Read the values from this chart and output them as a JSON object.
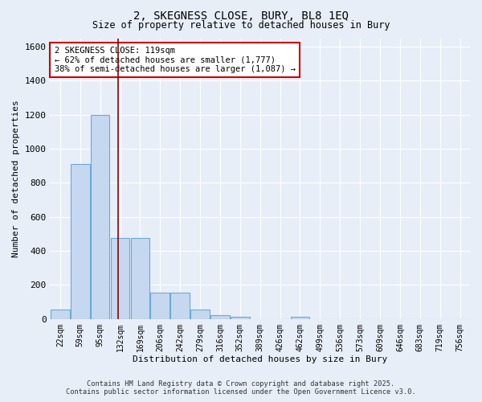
{
  "title1": "2, SKEGNESS CLOSE, BURY, BL8 1EQ",
  "title2": "Size of property relative to detached houses in Bury",
  "xlabel": "Distribution of detached houses by size in Bury",
  "ylabel": "Number of detached properties",
  "bar_labels": [
    "22sqm",
    "59sqm",
    "95sqm",
    "132sqm",
    "169sqm",
    "206sqm",
    "242sqm",
    "279sqm",
    "316sqm",
    "352sqm",
    "389sqm",
    "426sqm",
    "462sqm",
    "499sqm",
    "536sqm",
    "573sqm",
    "609sqm",
    "646sqm",
    "683sqm",
    "719sqm",
    "756sqm"
  ],
  "bar_heights": [
    55,
    910,
    1200,
    475,
    475,
    155,
    155,
    55,
    25,
    15,
    0,
    0,
    15,
    0,
    0,
    0,
    0,
    0,
    0,
    0,
    0
  ],
  "bar_color": "#c5d8f0",
  "bar_edge_color": "#6aaad4",
  "background_color": "#e8eef8",
  "grid_color": "#ffffff",
  "red_line_x": 2.88,
  "annotation_text": "2 SKEGNESS CLOSE: 119sqm\n← 62% of detached houses are smaller (1,777)\n38% of semi-detached houses are larger (1,087) →",
  "annotation_box_color": "#ffffff",
  "annotation_box_edge": "#cc0000",
  "ylim": [
    0,
    1650
  ],
  "yticks": [
    0,
    200,
    400,
    600,
    800,
    1000,
    1200,
    1400,
    1600
  ],
  "footer1": "Contains HM Land Registry data © Crown copyright and database right 2025.",
  "footer2": "Contains public sector information licensed under the Open Government Licence v3.0."
}
